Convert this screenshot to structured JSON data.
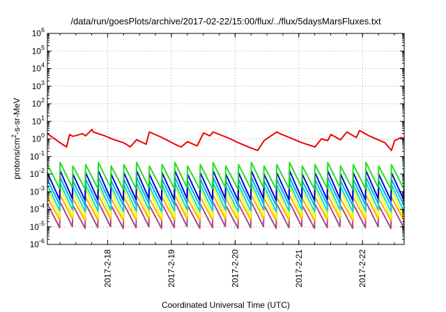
{
  "chart_data": {
    "type": "line",
    "title": "/data/run/goesPlots/archive/2017-02-22/15:00/flux/../flux/5daysMarsFluxes.txt",
    "xlabel": "Coordinated Universal Time (UTC)",
    "ylabel": "protons/cm²-s-sr-MeV",
    "yscale": "log",
    "ylim": [
      1e-06,
      1000000.0
    ],
    "xlim": [
      0,
      5.6
    ],
    "x_unit": "days since start of plotted window",
    "ytick_labels": [
      {
        "base": "10",
        "exp": "-6"
      },
      {
        "base": "10",
        "exp": "-5"
      },
      {
        "base": "10",
        "exp": "-4"
      },
      {
        "base": "10",
        "exp": "-3"
      },
      {
        "base": "10",
        "exp": "-2"
      },
      {
        "base": "10",
        "exp": "-1"
      },
      {
        "base": "10",
        "exp": "0"
      },
      {
        "base": "10",
        "exp": "1"
      },
      {
        "base": "10",
        "exp": "2"
      },
      {
        "base": "10",
        "exp": "3"
      },
      {
        "base": "10",
        "exp": "4"
      },
      {
        "base": "10",
        "exp": "5"
      },
      {
        "base": "10",
        "exp": "6"
      }
    ],
    "xtick_labels": [
      "2017-2-18",
      "2017-2-19",
      "2017-2-20",
      "2017-2-21",
      "2017-2-22"
    ],
    "xtick_values": [
      0.946,
      1.946,
      2.946,
      3.946,
      4.946
    ],
    "grid": true,
    "sawtooth_period_days": 0.2,
    "series": [
      {
        "color": "#ee0000",
        "x": [
          0.0,
          0.2,
          0.3,
          0.35,
          0.4,
          0.55,
          0.6,
          0.7,
          0.72,
          0.9,
          1.05,
          1.2,
          1.3,
          1.4,
          1.55,
          1.6,
          1.8,
          2.0,
          2.1,
          2.2,
          2.35,
          2.45,
          2.55,
          2.6,
          2.85,
          3.0,
          3.2,
          3.3,
          3.4,
          3.6,
          3.65,
          3.8,
          4.0,
          4.2,
          4.3,
          4.4,
          4.45,
          4.6,
          4.7,
          4.85,
          4.9,
          5.05,
          5.3,
          5.4,
          5.45,
          5.55,
          5.6
        ],
        "values": [
          2.0,
          0.6,
          0.35,
          1.8,
          1.4,
          2.0,
          1.5,
          3.5,
          2.5,
          1.5,
          0.9,
          0.6,
          0.35,
          0.9,
          0.5,
          2.5,
          1.2,
          0.5,
          0.35,
          0.7,
          0.4,
          2.2,
          1.5,
          2.5,
          1.1,
          0.6,
          0.3,
          0.22,
          0.8,
          2.5,
          2.0,
          1.2,
          0.6,
          0.35,
          1.0,
          0.8,
          1.8,
          0.9,
          2.5,
          1.2,
          3.0,
          1.5,
          0.6,
          0.22,
          0.8,
          1.2,
          1.1
        ]
      },
      {
        "color": "#22dd22",
        "peak": 0.035,
        "trough": 0.0015
      },
      {
        "color": "#0000dd",
        "peak": 0.012,
        "trough": 0.00035
      },
      {
        "color": "#00aaee",
        "peak": 0.005,
        "trough": 0.00018
      },
      {
        "color": "#00dddd",
        "peak": 0.0025,
        "trough": 8e-05
      },
      {
        "color": "#ffff00",
        "peak": 0.0015,
        "trough": 3.5e-05
      },
      {
        "color": "#ffaa00",
        "peak": 0.0005,
        "trough": 2.5e-05
      },
      {
        "color": "#aa4488",
        "peak": 0.0002,
        "trough": 9e-06
      }
    ]
  }
}
